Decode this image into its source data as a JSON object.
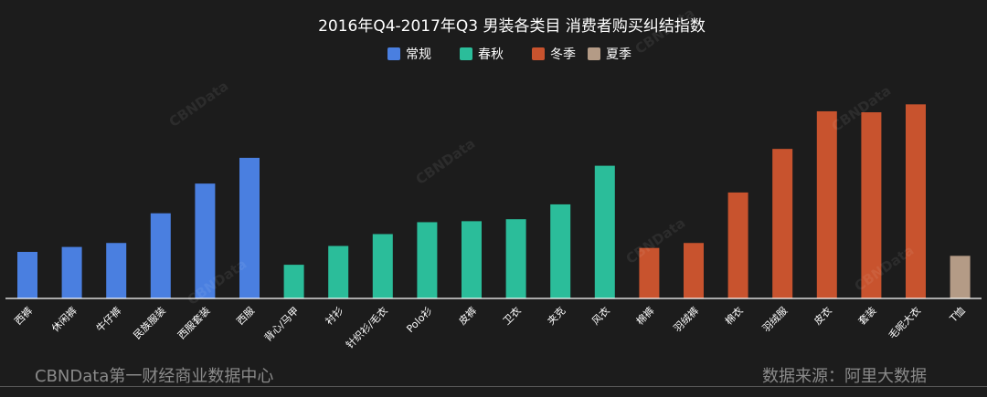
{
  "chart_data": {
    "type": "bar",
    "title": "2016年Q4-2017年Q3 男装各类目 消费者购买纠结指数",
    "xlabel": "",
    "ylabel": "",
    "ylim": [
      0,
      100
    ],
    "grid": false,
    "legend_position": "top-center",
    "legend": [
      {
        "name": "常规",
        "color": "#4a7fe0"
      },
      {
        "name": "春秋",
        "color": "#2bbd9a"
      },
      {
        "name": "冬季",
        "color": "#c8532e"
      },
      {
        "name": "夏季",
        "color": "#b49b86"
      }
    ],
    "categories": [
      "西裤",
      "休闲裤",
      "牛仔裤",
      "民族服装",
      "西服套装",
      "西服",
      "背心/马甲",
      "衬衫",
      "针织衫/毛衣",
      "Polo衫",
      "皮裤",
      "卫衣",
      "夹克",
      "风衣",
      "棉裤",
      "羽绒裤",
      "棉衣",
      "羽绒服",
      "皮衣",
      "套装",
      "毛呢大衣",
      "T恤"
    ],
    "groups": [
      "常规",
      "常规",
      "常规",
      "常规",
      "常规",
      "常规",
      "春秋",
      "春秋",
      "春秋",
      "春秋",
      "春秋",
      "春秋",
      "春秋",
      "春秋",
      "冬季",
      "冬季",
      "冬季",
      "冬季",
      "冬季",
      "冬季",
      "冬季",
      "夏季"
    ],
    "values": [
      23.5,
      26.0,
      28.0,
      43.0,
      58.0,
      71.0,
      17.0,
      26.5,
      32.5,
      38.5,
      39.0,
      40.0,
      47.5,
      67.0,
      25.5,
      28.0,
      53.5,
      75.5,
      94.5,
      94.0,
      98.0,
      21.5
    ]
  },
  "footer": {
    "left": "CBNData第一财经商业数据中心",
    "right": "数据来源：阿里大数据"
  },
  "watermark": "CBNData"
}
